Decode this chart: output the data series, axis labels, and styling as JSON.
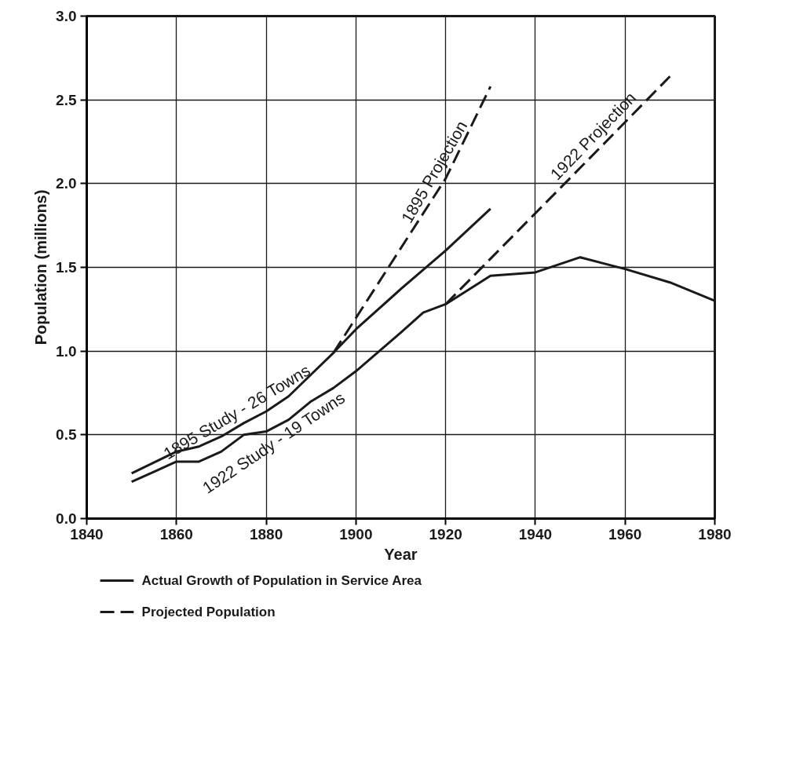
{
  "chart_data": {
    "type": "line",
    "xlabel": "Year",
    "ylabel": "Population (millions)",
    "xlim": [
      1840,
      1980
    ],
    "xticks": [
      1840,
      1860,
      1880,
      1900,
      1920,
      1940,
      1960,
      1980
    ],
    "ylim": [
      0,
      3
    ],
    "yticks": [
      {
        "value": 0,
        "label": "0.0"
      },
      0.5,
      {
        "value": 1,
        "label": "1.0"
      },
      1.5,
      {
        "value": 2,
        "label": "2.0"
      },
      2.5,
      {
        "value": 3,
        "label": "3.0"
      }
    ],
    "grid": true,
    "legend": "bottom left",
    "marker": "none",
    "series": [
      {
        "name": "Actual Growth of Population in Service Area",
        "color": "#1a1a1a",
        "line_style": "solid",
        "x": [
          1850,
          1860,
          1865,
          1870,
          1875,
          1880,
          1885,
          1890,
          1895,
          1900,
          1910,
          1920,
          1930
        ],
        "values": [
          0.27,
          0.4,
          0.43,
          0.49,
          0.57,
          0.64,
          0.73,
          0.86,
          0.99,
          1.13,
          1.37,
          1.6,
          1.85
        ]
      },
      {
        "color": "#1a1a1a",
        "line_style": "solid",
        "x": [
          1850,
          1855,
          1860,
          1865,
          1870,
          1875,
          1880,
          1885,
          1890,
          1895,
          1900,
          1910,
          1915,
          1920,
          1930,
          1940,
          1950,
          1960,
          1970,
          1980
        ],
        "values": [
          0.22,
          0.28,
          0.34,
          0.34,
          0.4,
          0.5,
          0.52,
          0.59,
          0.7,
          0.78,
          0.88,
          1.11,
          1.23,
          1.28,
          1.45,
          1.47,
          1.56,
          1.49,
          1.41,
          1.3
        ]
      },
      {
        "name": "Projected Population",
        "color": "#1a1a1a",
        "line_style": "dashed",
        "x": [
          1895,
          1920,
          1930
        ],
        "values": [
          0.99,
          2.03,
          2.58
        ]
      },
      {
        "color": "#1a1a1a",
        "line_style": "dashed",
        "x": [
          1920,
          1955,
          1970
        ],
        "values": [
          1.28,
          2.23,
          2.64
        ]
      }
    ],
    "annotations": [
      {
        "text": "1895 Study - 26 Towns",
        "x": 1875,
        "y": 0.57
      },
      {
        "text": "1922 Study - 19 Towns",
        "x": 1880,
        "y": 0.52
      },
      {
        "text": "1895 Projection",
        "x": 1920,
        "y": 2.03
      },
      {
        "text": "1922 Projection",
        "x": 1955,
        "y": 2.23
      }
    ]
  }
}
